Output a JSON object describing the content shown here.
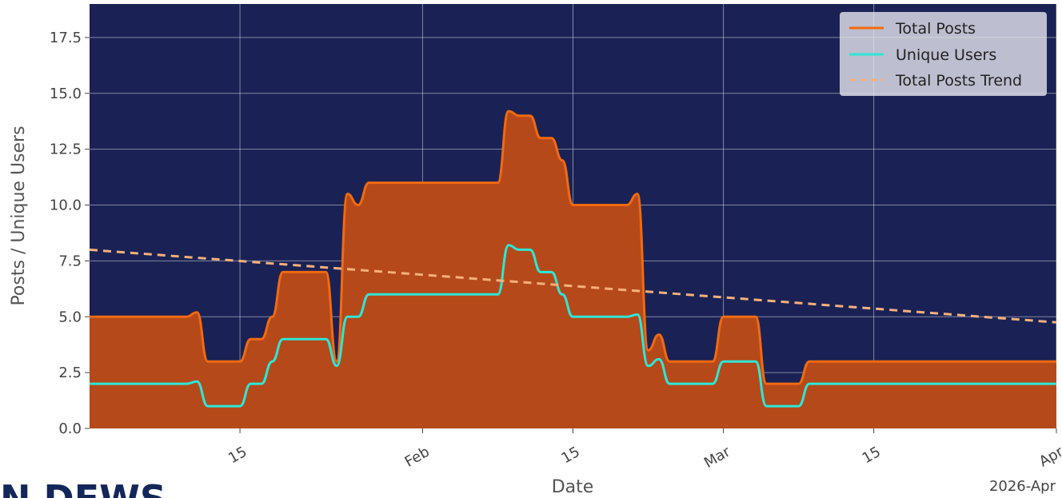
{
  "logo": {
    "text": "N DEWS"
  },
  "chart_data": {
    "type": "area",
    "xlabel": "Date",
    "ylabel": "Posts / Unique Users",
    "x_offset_label": "2026-Apr",
    "x_range": [
      "2026-01-01",
      "2026-04-01"
    ],
    "ylim": [
      0,
      19
    ],
    "grid": true,
    "legend_position": "top-right",
    "x_ticks": [
      {
        "date": "2026-01-15",
        "label": "15"
      },
      {
        "date": "2026-02-01",
        "label": "Feb"
      },
      {
        "date": "2026-02-15",
        "label": "15"
      },
      {
        "date": "2026-03-01",
        "label": "Mar"
      },
      {
        "date": "2026-03-15",
        "label": "15"
      },
      {
        "date": "2026-04-01",
        "label": "Apr"
      }
    ],
    "y_ticks": [
      0,
      2.5,
      5,
      7.5,
      10,
      12.5,
      15,
      17.5
    ],
    "x": [
      "2026-01-01",
      "2026-01-02",
      "2026-01-03",
      "2026-01-04",
      "2026-01-05",
      "2026-01-06",
      "2026-01-07",
      "2026-01-08",
      "2026-01-09",
      "2026-01-10",
      "2026-01-11",
      "2026-01-12",
      "2026-01-13",
      "2026-01-14",
      "2026-01-15",
      "2026-01-16",
      "2026-01-17",
      "2026-01-18",
      "2026-01-19",
      "2026-01-20",
      "2026-01-21",
      "2026-01-22",
      "2026-01-23",
      "2026-01-24",
      "2026-01-25",
      "2026-01-26",
      "2026-01-27",
      "2026-01-28",
      "2026-01-29",
      "2026-01-30",
      "2026-01-31",
      "2026-02-01",
      "2026-02-02",
      "2026-02-03",
      "2026-02-04",
      "2026-02-05",
      "2026-02-06",
      "2026-02-07",
      "2026-02-08",
      "2026-02-09",
      "2026-02-10",
      "2026-02-11",
      "2026-02-12",
      "2026-02-13",
      "2026-02-14",
      "2026-02-15",
      "2026-02-16",
      "2026-02-17",
      "2026-02-18",
      "2026-02-19",
      "2026-02-20",
      "2026-02-21",
      "2026-02-22",
      "2026-02-23",
      "2026-02-24",
      "2026-02-25",
      "2026-02-26",
      "2026-02-27",
      "2026-02-28",
      "2026-03-01",
      "2026-03-02",
      "2026-03-03",
      "2026-03-04",
      "2026-03-05",
      "2026-03-06",
      "2026-03-07",
      "2026-03-08",
      "2026-03-09",
      "2026-03-10",
      "2026-03-11",
      "2026-03-12",
      "2026-03-13",
      "2026-03-14",
      "2026-03-15",
      "2026-03-16",
      "2026-03-17",
      "2026-03-18",
      "2026-03-19",
      "2026-03-20",
      "2026-03-21",
      "2026-03-22",
      "2026-03-23",
      "2026-03-24",
      "2026-03-25",
      "2026-03-26",
      "2026-03-27",
      "2026-03-28",
      "2026-03-29",
      "2026-03-30",
      "2026-03-31",
      "2026-04-01"
    ],
    "series": [
      {
        "name": "Total Posts",
        "color": "#f26a10",
        "fill": "#b5491a",
        "values": [
          5,
          5,
          5,
          5,
          5,
          5,
          5,
          5,
          5,
          5,
          5.2,
          3,
          3,
          3,
          3,
          4,
          4,
          5,
          7,
          7,
          7,
          7,
          7,
          3,
          10.5,
          10,
          11,
          11,
          11,
          11,
          11,
          11,
          11,
          11,
          11,
          11,
          11,
          11,
          11,
          14.2,
          14,
          14,
          13,
          13,
          12,
          10,
          10,
          10,
          10,
          10,
          10,
          10.5,
          3.5,
          4.2,
          3,
          3,
          3,
          3,
          3,
          5,
          5,
          5,
          5,
          2,
          2,
          2,
          2,
          3,
          3,
          3,
          3,
          3,
          3,
          3,
          3,
          3,
          3,
          3,
          3,
          3,
          3,
          3,
          3,
          3,
          3,
          3,
          3,
          3,
          3,
          3,
          3
        ]
      },
      {
        "name": "Unique Users",
        "color": "#2ee6d6",
        "values": [
          2,
          2,
          2,
          2,
          2,
          2,
          2,
          2,
          2,
          2,
          2.1,
          1,
          1,
          1,
          1,
          2,
          2,
          3,
          4,
          4,
          4,
          4,
          4,
          2.8,
          5,
          5,
          6,
          6,
          6,
          6,
          6,
          6,
          6,
          6,
          6,
          6,
          6,
          6,
          6,
          8.2,
          8,
          8,
          7,
          7,
          6,
          5,
          5,
          5,
          5,
          5,
          5,
          5.1,
          2.8,
          3.1,
          2,
          2,
          2,
          2,
          2,
          3,
          3,
          3,
          3,
          1,
          1,
          1,
          1,
          2,
          2,
          2,
          2,
          2,
          2,
          2,
          2,
          2,
          2,
          2,
          2,
          2,
          2,
          2,
          2,
          2,
          2,
          2,
          2,
          2,
          2,
          2,
          2
        ]
      },
      {
        "name": "Total Posts Trend",
        "color": "#f7b07a",
        "style": "dashed",
        "start": 8.0,
        "end": 4.75
      }
    ]
  }
}
